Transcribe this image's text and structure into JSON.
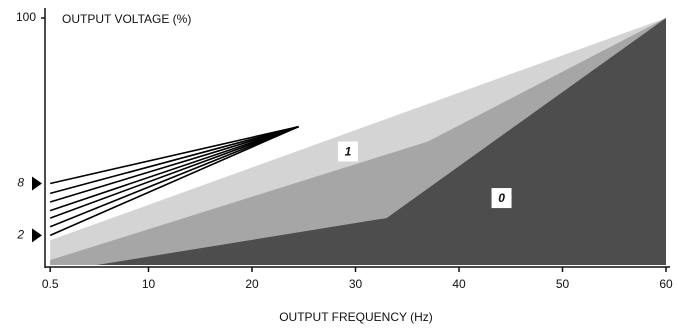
{
  "chart_data": {
    "type": "area",
    "title": "OUTPUT VOLTAGE (%)",
    "x_label": "OUTPUT FREQUENCY (Hz)",
    "xlim": [
      0,
      60
    ],
    "xticks": [
      0.5,
      10,
      20,
      30,
      40,
      50,
      60
    ],
    "ylim": [
      0,
      100
    ],
    "yticks": [
      100
    ],
    "regions": [
      {
        "color": "#d4d4d4",
        "x": [
          0.5,
          60
        ],
        "values": [
          10,
          100
        ]
      },
      {
        "color": "#a6a6a6",
        "label": "1",
        "x": [
          0.5,
          37,
          60
        ],
        "values": [
          2,
          50,
          100
        ]
      },
      {
        "color": "#4d4d4d",
        "label": "0",
        "x": [
          5,
          33,
          60
        ],
        "values": [
          0,
          19,
          100
        ]
      }
    ],
    "lines": [
      {
        "color": "#000000",
        "label": "8",
        "x": [
          0.5,
          24.5
        ],
        "values": [
          33,
          56
        ]
      },
      {
        "color": "#000000",
        "x": [
          0.5,
          24.5
        ],
        "values": [
          29,
          56
        ]
      },
      {
        "color": "#000000",
        "x": [
          0.5,
          24.5
        ],
        "values": [
          25.5,
          56
        ]
      },
      {
        "color": "#000000",
        "x": [
          0.5,
          24.5
        ],
        "values": [
          22,
          56
        ]
      },
      {
        "color": "#000000",
        "x": [
          0.5,
          24.5
        ],
        "values": [
          19,
          56
        ]
      },
      {
        "color": "#000000",
        "x": [
          0.5,
          24.5
        ],
        "values": [
          15.5,
          56
        ]
      },
      {
        "color": "#000000",
        "label": "2",
        "x": [
          0.5,
          24.5
        ],
        "values": [
          12,
          56
        ]
      }
    ]
  }
}
